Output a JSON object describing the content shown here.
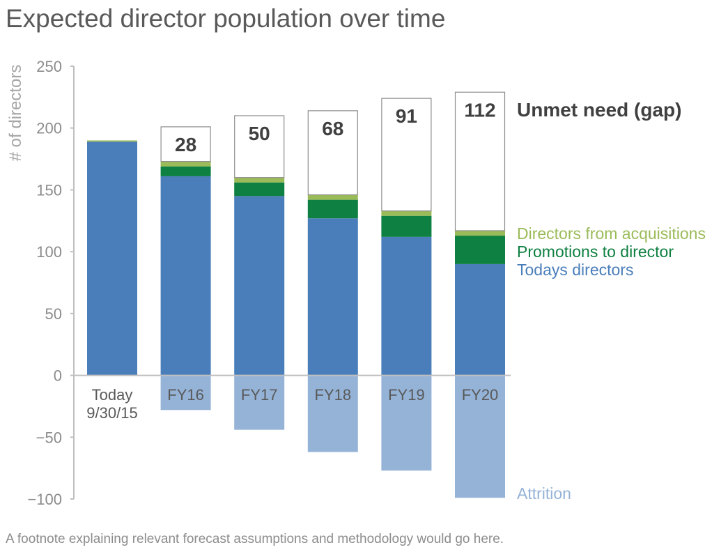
{
  "title": "Expected director population over time",
  "footnote": "A footnote explaining relevant forecast assumptions and methodology would go here.",
  "colors": {
    "todays": "#4A7EBB",
    "promotions": "#0E8041",
    "acquisitions": "#9BBB59",
    "attrition": "#95B3D7",
    "gap_border": "#8C8C8C",
    "axis": "#BFBFBF",
    "tick_text": "#8C8C8C",
    "category_text": "#595959",
    "gap_label": "#404040"
  },
  "chart_data": {
    "type": "bar",
    "stacked": true,
    "title": "Expected director population over time",
    "ylabel": "# of directors",
    "xlabel": "",
    "ylim": [
      -100,
      250
    ],
    "yticks": [
      250,
      200,
      150,
      100,
      50,
      0,
      -50,
      -100
    ],
    "grid": false,
    "categories": [
      {
        "line1": "Today",
        "line2": "9/30/15"
      },
      {
        "line1": "FY16",
        "line2": ""
      },
      {
        "line1": "FY17",
        "line2": ""
      },
      {
        "line1": "FY18",
        "line2": ""
      },
      {
        "line1": "FY19",
        "line2": ""
      },
      {
        "line1": "FY20",
        "line2": ""
      }
    ],
    "series": [
      {
        "key": "todays",
        "name": "Todays directors",
        "values": [
          189,
          161,
          145,
          127,
          112,
          90
        ]
      },
      {
        "key": "promotions",
        "name": "Promotions to director",
        "values": [
          0,
          8,
          11,
          15,
          17,
          23
        ]
      },
      {
        "key": "acquisitions",
        "name": "Directors from acquisitions",
        "values": [
          1,
          4,
          4,
          4,
          4,
          4
        ]
      },
      {
        "key": "gap",
        "name": "Unmet need (gap)",
        "values": [
          0,
          28,
          50,
          68,
          91,
          112
        ]
      },
      {
        "key": "attrition",
        "name": "Attrition",
        "values": [
          0,
          -28,
          -44,
          -62,
          -77,
          -99
        ]
      }
    ],
    "gap_labels": [
      "",
      "28",
      "50",
      "68",
      "91",
      "112"
    ],
    "legend": {
      "gap": "Unmet need (gap)",
      "acquisitions": "Directors from acquisitions",
      "promotions": "Promotions to director",
      "todays": "Todays directors",
      "attrition": "Attrition"
    }
  }
}
